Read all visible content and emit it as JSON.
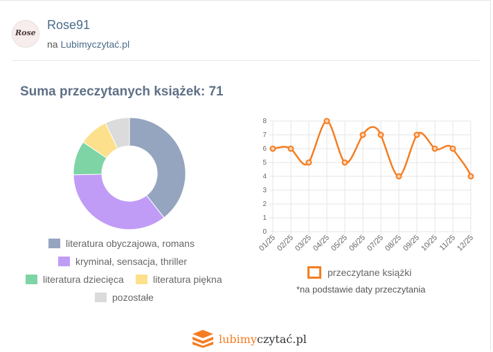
{
  "profile": {
    "username": "Rose91",
    "avatar_text": "Rose",
    "site_prefix": "na",
    "site_name": "Lubimyczytać.pl"
  },
  "summary": {
    "title": "Suma przeczytanych książek: 71"
  },
  "colors": {
    "literatura obyczajowa, romans": "#95a5c0",
    "kryminał, sensacja, thriller": "#c09cf7",
    "literatura dziecięca": "#7ed4a4",
    "literatura piękna": "#fde08c",
    "pozostałe": "#dbdbdb",
    "line": "#f57c1f"
  },
  "legend_pie": [
    "literatura obyczajowa, romans",
    "kryminał, sensacja, thriller",
    "literatura dziecięca",
    "literatura piękna",
    "pozostałe"
  ],
  "line_legend": "przeczytane książki",
  "footnote": "*na podstawie daty przeczytania",
  "brand": {
    "part1": "lubimy",
    "part2": "czytać.pl"
  },
  "chart_data": [
    {
      "type": "pie",
      "categories": [
        "literatura obyczajowa, romans",
        "kryminał, sensacja, thriller",
        "literatura dziecięca",
        "literatura piękna",
        "pozostałe"
      ],
      "values": [
        28,
        25,
        7,
        6,
        5
      ]
    },
    {
      "type": "line",
      "categories": [
        "01/25",
        "02/25",
        "03/25",
        "04/25",
        "05/25",
        "06/25",
        "07/25",
        "08/25",
        "09/25",
        "10/25",
        "11/25",
        "12/25"
      ],
      "values": [
        6,
        6,
        5,
        8,
        5,
        7,
        7,
        4,
        7,
        6,
        6,
        4
      ],
      "ylim": [
        0,
        8
      ],
      "yticks": [
        0,
        1,
        2,
        3,
        4,
        5,
        6,
        7,
        8
      ],
      "grid": true,
      "series": [
        {
          "name": "przeczytane książki",
          "values": [
            6,
            6,
            5,
            8,
            5,
            7,
            7,
            4,
            7,
            6,
            6,
            4
          ]
        }
      ]
    }
  ]
}
